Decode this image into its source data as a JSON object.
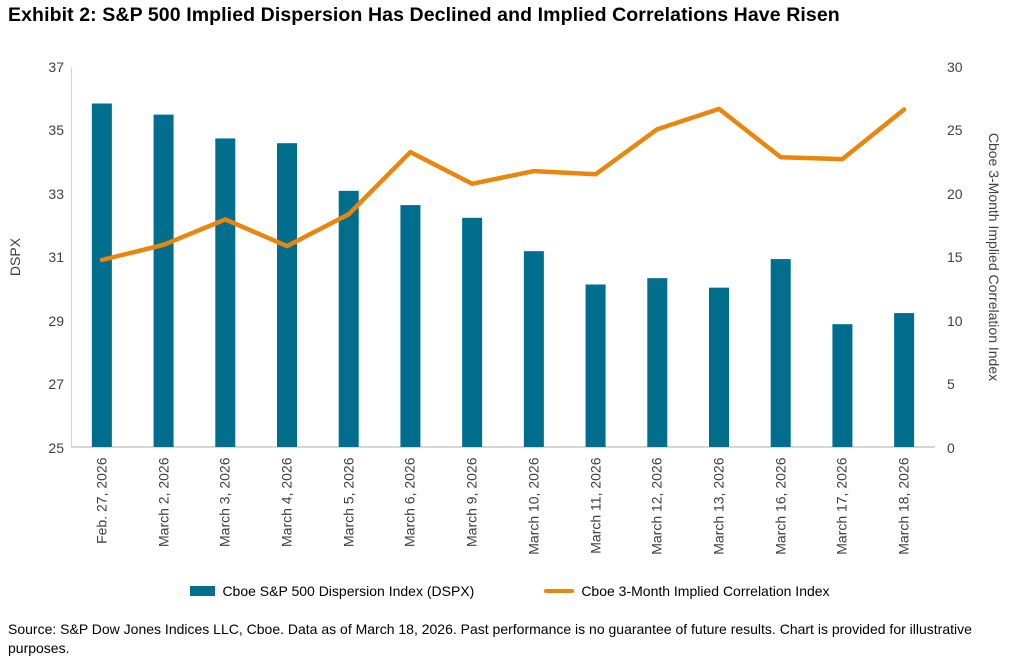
{
  "title": "Exhibit 2: S&P 500 Implied Dispersion Has Declined and Implied Correlations Have Risen",
  "axes": {
    "left_title": "DSPX",
    "right_title": "Cboe 3-Month Implied Correlation Index",
    "left_ticks": [
      37,
      35,
      33,
      31,
      29,
      27,
      25
    ],
    "right_ticks": [
      30,
      25,
      20,
      15,
      10,
      5,
      0
    ]
  },
  "legend": {
    "dspx_label": "Cboe S&P 500 Dispersion Index (DSPX)",
    "correlation_label": "Cboe 3-Month Implied Correlation Index"
  },
  "footer": {
    "source": "Source: S&P Dow Jones Indices LLC, Cboe. Data as of March 18, 2026. Past performance is no guarantee of future results. Chart is provided for illustrative purposes."
  },
  "colors": {
    "bar": "#006E8C",
    "line": "#E8860D",
    "axis_line": "#D6D6D6",
    "tick_text": "#404040"
  },
  "chart_data": {
    "type": "bar",
    "title": "Exhibit 2: S&P 500 Implied Dispersion Has Declined and Implied Correlations Have Risen",
    "categories": [
      "Feb. 27, 2026",
      "March 2, 2026",
      "March 3, 2026",
      "March 4, 2026",
      "March 5, 2026",
      "March 6, 2026",
      "March 9, 2026",
      "March 10, 2026",
      "March 11, 2026",
      "March 12, 2026",
      "March 13, 2026",
      "March 16, 2026",
      "March 17, 2026",
      "March 18, 2026"
    ],
    "series": [
      {
        "name": "Cboe S&P 500 Dispersion Index (DSPX)",
        "type": "bar",
        "axis": "left",
        "values": [
          35.85,
          35.5,
          34.75,
          34.6,
          33.1,
          32.65,
          32.25,
          31.2,
          30.15,
          30.35,
          30.05,
          30.95,
          28.9,
          29.25
        ]
      },
      {
        "name": "Cboe 3-Month Implied Correlation Index",
        "type": "line",
        "axis": "right",
        "values": [
          14.8,
          16.0,
          18.0,
          15.9,
          18.4,
          23.3,
          20.8,
          21.8,
          21.55,
          25.1,
          26.7,
          22.9,
          22.75,
          26.65
        ]
      }
    ],
    "xlabel": "",
    "ylabel_left": "DSPX",
    "ylabel_right": "Cboe 3-Month Implied Correlation Index",
    "left_ylim": [
      25,
      37
    ],
    "right_ylim": [
      0,
      30
    ],
    "grid": false,
    "legend_position": "bottom"
  }
}
